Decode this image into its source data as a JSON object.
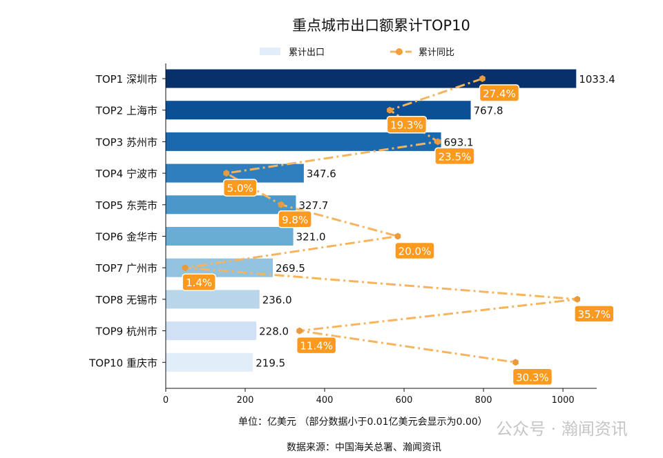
{
  "chart_data": {
    "type": "bar",
    "orientation": "horizontal",
    "title": "重点城市出口额累计TOP10",
    "categories": [
      "TOP1 深圳市",
      "TOP2 上海市",
      "TOP3 苏州市",
      "TOP4 宁波市",
      "TOP5 东莞市",
      "TOP6 金华市",
      "TOP7 广州市",
      "TOP8 无锡市",
      "TOP9 杭州市",
      "TOP10 重庆市"
    ],
    "series": [
      {
        "name": "累计出口",
        "type": "bar",
        "values": [
          1033.4,
          767.8,
          693.1,
          347.6,
          327.7,
          321.0,
          269.5,
          236.0,
          228.0,
          219.5
        ],
        "labels": [
          "1033.4",
          "767.8",
          "693.1",
          "347.6",
          "327.7",
          "321.0",
          "269.5",
          "236.0",
          "228.0",
          "219.5"
        ],
        "colors": [
          "#08306b",
          "#0b4f95",
          "#1a68ae",
          "#2f7fbf",
          "#4a98c9",
          "#69add5",
          "#93c3df",
          "#b9d5ea",
          "#cfe1f2",
          "#e1edf8"
        ]
      },
      {
        "name": "累计同比",
        "type": "line",
        "axis": "secondary-hidden",
        "values": [
          27.4,
          19.3,
          23.5,
          5.0,
          9.8,
          20.0,
          1.4,
          35.7,
          11.4,
          30.3
        ],
        "labels": [
          "27.4%",
          "19.3%",
          "23.5%",
          "5.0%",
          "9.8%",
          "20.0%",
          "1.4%",
          "35.7%",
          "11.4%",
          "30.3%"
        ],
        "color": "#f8b45c",
        "marker_color": "#e89a3c",
        "label_bg": "#fb9a1e"
      }
    ],
    "xlim": [
      0,
      1085
    ],
    "secondary_xlim": [
      -0.3,
      37.4
    ],
    "xticks": [
      "0",
      "200",
      "400",
      "600",
      "800",
      "1000"
    ],
    "xtick_values": [
      0,
      200,
      400,
      600,
      800,
      1000
    ],
    "xlabel": "单位：亿美元  （部分数据小于0.01亿美元会显示为0.00）",
    "legend": "top-center",
    "grid": false
  },
  "source": "数据来源：中国海关总署、瀚闻资讯",
  "watermark": "公众号 · 瀚闻资讯"
}
